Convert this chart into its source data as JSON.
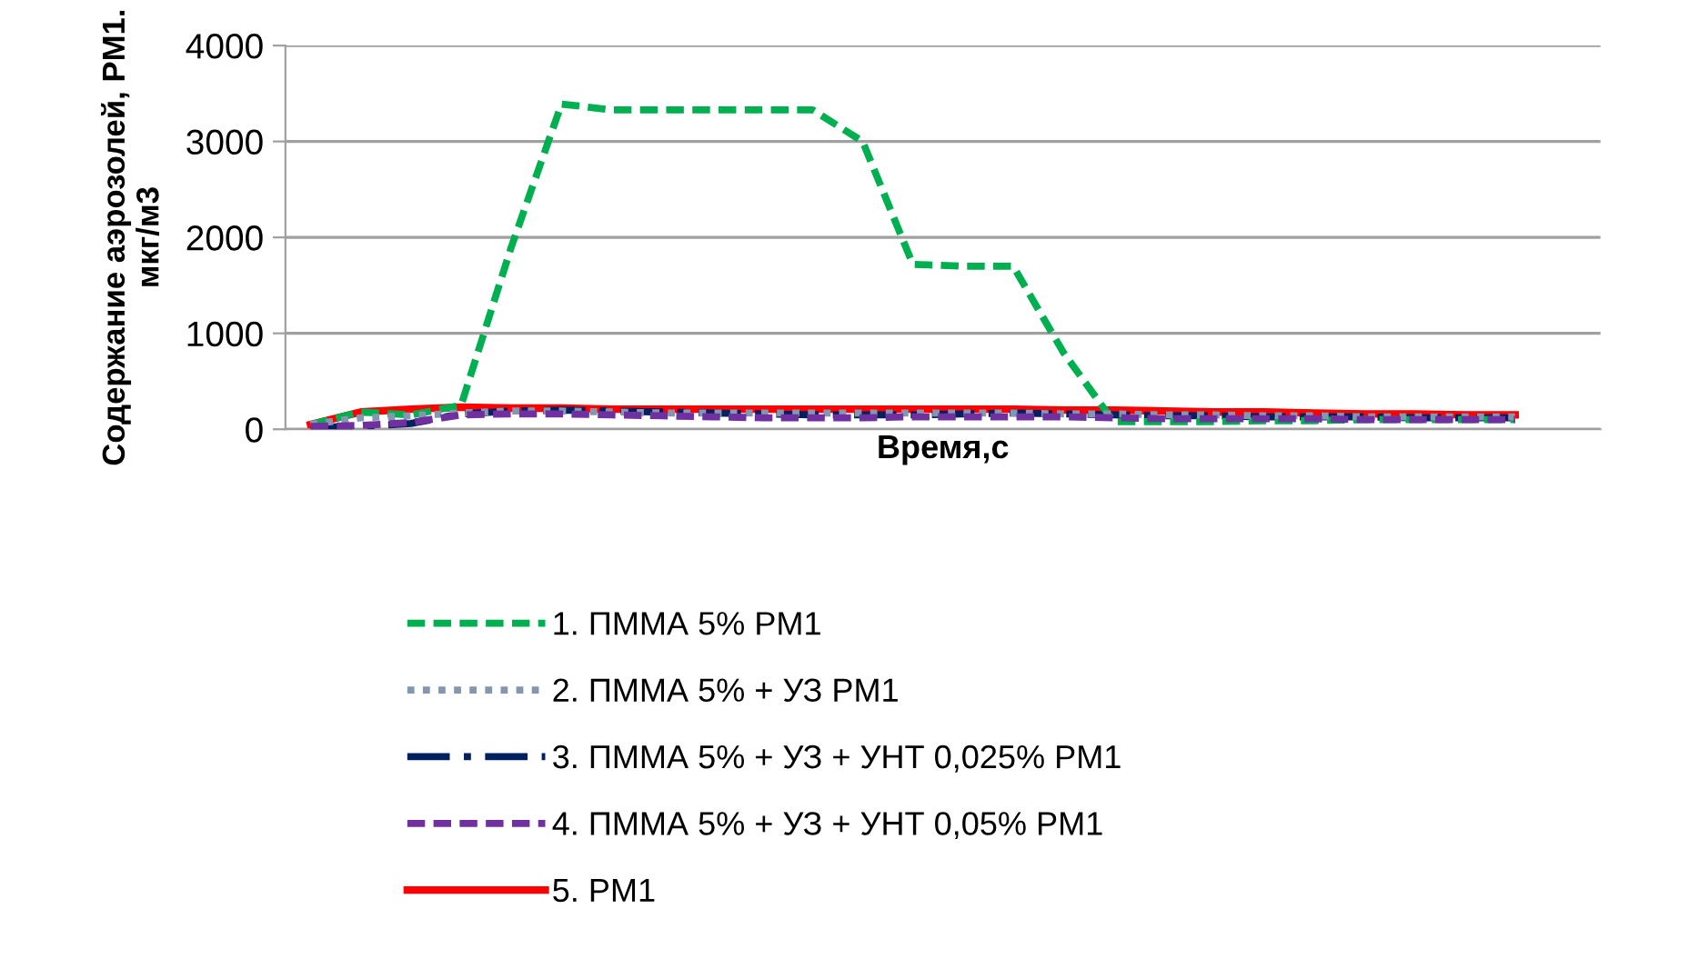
{
  "chart_data": {
    "type": "line",
    "xlabel": "Время,с",
    "ylabel": "Содержание аэрозолей, PM1.\nмкг/м3",
    "categories": [
      null,
      null,
      null,
      null,
      null,
      null,
      null,
      null,
      null,
      null,
      null,
      null,
      null,
      null,
      null,
      null,
      null,
      null,
      null,
      null,
      null,
      null,
      null,
      null,
      null
    ],
    "ylim": [
      0,
      4000
    ],
    "yticks": [
      0,
      1000,
      2000,
      3000,
      4000
    ],
    "grid": "y",
    "legend": "bottom",
    "tick_labels": "y",
    "marker": "none",
    "series": [
      {
        "name": "1. ПММА 5% PM1",
        "color": "#00b050",
        "line_style": "dashed",
        "values": [
          50,
          180,
          150,
          250,
          1900,
          3390,
          3330,
          3330,
          3330,
          3330,
          3330,
          3000,
          1720,
          1700,
          1700,
          800,
          80,
          80,
          80,
          90,
          90,
          100,
          100,
          100,
          100
        ]
      },
      {
        "name": "2. ПММА 5% + УЗ PM1",
        "color": "#8497b0",
        "line_style": "dotted",
        "values": [
          50,
          120,
          140,
          170,
          190,
          190,
          180,
          170,
          170,
          170,
          170,
          170,
          170,
          170,
          170,
          160,
          160,
          150,
          150,
          140,
          140,
          130,
          130,
          130,
          130
        ]
      },
      {
        "name": "3. ПММА 5% + УЗ + УНТ 0,025% PM1",
        "color": "#002060",
        "line_style": "dashdot",
        "values": [
          20,
          30,
          60,
          160,
          190,
          200,
          190,
          180,
          170,
          160,
          150,
          150,
          150,
          160,
          170,
          160,
          150,
          140,
          140,
          130,
          130,
          130,
          120,
          120,
          120
        ]
      },
      {
        "name": "4. ПММА 5% + УЗ + УНТ 0,05% PM1",
        "color": "#7030a0",
        "line_style": "dashed",
        "values": [
          30,
          40,
          70,
          150,
          160,
          160,
          150,
          140,
          130,
          120,
          120,
          120,
          130,
          130,
          130,
          130,
          120,
          110,
          110,
          110,
          110,
          100,
          100,
          100,
          100
        ]
      },
      {
        "name": "5. PM1",
        "color": "#ff0000",
        "line_style": "solid",
        "values": [
          50,
          180,
          210,
          230,
          220,
          220,
          210,
          210,
          210,
          210,
          210,
          210,
          210,
          210,
          210,
          200,
          200,
          190,
          180,
          180,
          170,
          160,
          160,
          150,
          150
        ]
      }
    ]
  }
}
